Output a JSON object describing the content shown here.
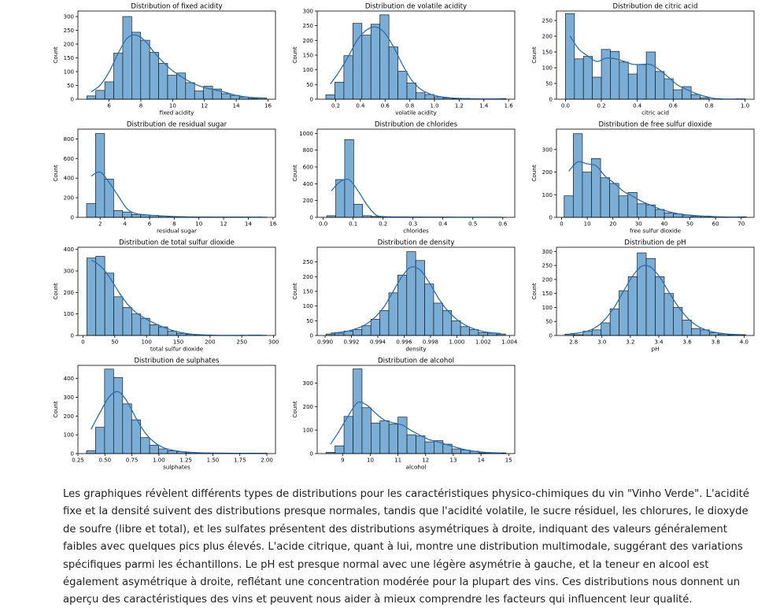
{
  "chart_data": [
    {
      "type": "bar",
      "title": "Distribution of fixed acidity",
      "xlabel": "fixed acidity",
      "ylabel": "Count",
      "x_range": [
        4.6,
        15.9
      ],
      "xlim": [
        4.04,
        16.47
      ],
      "ylim": [
        0,
        320
      ],
      "xticks": [
        6,
        8,
        10,
        12,
        14,
        16
      ],
      "yticks": [
        0,
        50,
        100,
        150,
        200,
        250,
        300
      ],
      "values": [
        12,
        32,
        63,
        167,
        300,
        243,
        214,
        170,
        130,
        87,
        95,
        60,
        30,
        47,
        37,
        20,
        14,
        8,
        3,
        5
      ]
    },
    {
      "type": "bar",
      "title": "Distribution de volatile acidity",
      "xlabel": "volatile acidity",
      "ylabel": "Count",
      "x_range": [
        0.12,
        1.58
      ],
      "xlim": [
        0.05,
        1.65
      ],
      "ylim": [
        0,
        300
      ],
      "xticks": [
        0.2,
        0.4,
        0.6,
        0.8,
        1.0,
        1.2,
        1.4,
        1.6
      ],
      "yticks": [
        0,
        50,
        100,
        150,
        200,
        250,
        300
      ],
      "values": [
        15,
        58,
        148,
        258,
        218,
        255,
        287,
        178,
        95,
        55,
        22,
        16,
        8,
        4,
        2,
        3,
        1,
        0,
        1,
        2
      ]
    },
    {
      "type": "bar",
      "title": "Distribution de citric acid",
      "xlabel": "citric acid",
      "ylabel": "Count",
      "x_range": [
        0,
        1
      ],
      "xlim": [
        -0.05,
        1.05
      ],
      "ylim": [
        0,
        280
      ],
      "xticks": [
        0.0,
        0.2,
        0.4,
        0.6,
        0.8,
        1.0
      ],
      "yticks": [
        0,
        50,
        100,
        150,
        200,
        250
      ],
      "values": [
        272,
        128,
        136,
        70,
        158,
        152,
        118,
        80,
        110,
        150,
        88,
        65,
        30,
        40,
        15,
        5,
        0,
        0,
        0,
        1
      ]
    },
    {
      "type": "bar",
      "title": "Distribution de residual sugar",
      "xlabel": "residual sugar",
      "ylabel": "Count",
      "x_range": [
        0.9,
        15.5
      ],
      "xlim": [
        0.2,
        16.2
      ],
      "ylim": [
        0,
        900
      ],
      "xticks": [
        2,
        4,
        6,
        8,
        10,
        12,
        14,
        16
      ],
      "yticks": [
        0,
        200,
        400,
        600,
        800
      ],
      "values": [
        140,
        855,
        390,
        70,
        55,
        30,
        25,
        20,
        12,
        8,
        6,
        3,
        3,
        2,
        2,
        2,
        3,
        2,
        1,
        2
      ]
    },
    {
      "type": "bar",
      "title": "Distribution de chlorides",
      "xlabel": "chlorides",
      "ylabel": "Count",
      "x_range": [
        0.012,
        0.611
      ],
      "xlim": [
        -0.02,
        0.64
      ],
      "ylim": [
        0,
        1050
      ],
      "xticks": [
        0.0,
        0.1,
        0.2,
        0.3,
        0.4,
        0.5,
        0.6
      ],
      "yticks": [
        0,
        200,
        400,
        600,
        800,
        1000
      ],
      "values": [
        20,
        450,
        925,
        155,
        20,
        10,
        6,
        4,
        4,
        3,
        3,
        2,
        2,
        2,
        1,
        1,
        1,
        1,
        1,
        1
      ]
    },
    {
      "type": "bar",
      "title": "Distribution de free sulfur dioxide",
      "xlabel": "free sulfur dioxide",
      "ylabel": "Count",
      "x_range": [
        1,
        72
      ],
      "xlim": [
        -2,
        75
      ],
      "ylim": [
        0,
        390
      ],
      "xticks": [
        0,
        10,
        20,
        30,
        40,
        50,
        60,
        70
      ],
      "yticks": [
        0,
        100,
        200,
        300
      ],
      "values": [
        95,
        370,
        200,
        260,
        175,
        150,
        95,
        110,
        60,
        55,
        35,
        20,
        15,
        10,
        5,
        6,
        2,
        1,
        0,
        2
      ]
    },
    {
      "type": "bar",
      "title": "Distribution de total sulfur dioxide",
      "xlabel": "total sulfur dioxide",
      "ylabel": "Count",
      "x_range": [
        6,
        289
      ],
      "xlim": [
        -8,
        303
      ],
      "ylim": [
        0,
        410
      ],
      "xticks": [
        0,
        50,
        100,
        150,
        200,
        250,
        300
      ],
      "yticks": [
        0,
        100,
        200,
        300,
        400
      ],
      "values": [
        360,
        368,
        290,
        180,
        130,
        100,
        80,
        50,
        40,
        20,
        10,
        5,
        3,
        1,
        0,
        0,
        0,
        0,
        1,
        1
      ]
    },
    {
      "type": "bar",
      "title": "Distribution de density",
      "xlabel": "density",
      "ylabel": "Count",
      "x_range": [
        0.99007,
        1.00369
      ],
      "xlim": [
        0.9894,
        1.0044
      ],
      "ylim": [
        0,
        300
      ],
      "xticks": [
        0.99,
        0.992,
        0.994,
        0.996,
        0.998,
        1.0,
        1.002,
        1.004
      ],
      "yticks": [
        0,
        50,
        100,
        150,
        200,
        250
      ],
      "values": [
        5,
        8,
        15,
        20,
        33,
        55,
        85,
        145,
        205,
        285,
        255,
        175,
        110,
        85,
        50,
        30,
        20,
        10,
        8,
        5
      ]
    },
    {
      "type": "bar",
      "title": "Distribution de pH",
      "xlabel": "pH",
      "ylabel": "Count",
      "x_range": [
        2.74,
        4.01
      ],
      "xlim": [
        2.68,
        4.07
      ],
      "ylim": [
        0,
        315
      ],
      "xticks": [
        2.8,
        3.0,
        3.2,
        3.4,
        3.6,
        3.8,
        4.0
      ],
      "yticks": [
        0,
        50,
        100,
        150,
        200,
        250,
        300
      ],
      "values": [
        5,
        3,
        15,
        20,
        45,
        95,
        160,
        210,
        295,
        275,
        210,
        150,
        100,
        55,
        25,
        20,
        10,
        5,
        2,
        3
      ]
    },
    {
      "type": "bar",
      "title": "Distribution de sulphates",
      "xlabel": "sulphates",
      "ylabel": "Count",
      "x_range": [
        0.33,
        2.0
      ],
      "xlim": [
        0.25,
        2.08
      ],
      "ylim": [
        0,
        470
      ],
      "xticks": [
        0.25,
        0.5,
        0.75,
        1.0,
        1.25,
        1.5,
        1.75,
        2.0
      ],
      "yticks": [
        0,
        100,
        200,
        300,
        400
      ],
      "values": [
        15,
        140,
        450,
        405,
        265,
        180,
        85,
        45,
        25,
        15,
        10,
        5,
        4,
        3,
        2,
        2,
        2,
        1,
        1,
        2
      ]
    },
    {
      "type": "bar",
      "title": "Distribution de alcohol",
      "xlabel": "alcohol",
      "ylabel": "Count",
      "x_range": [
        8.4,
        14.9
      ],
      "xlim": [
        8.08,
        15.22
      ],
      "ylim": [
        0,
        375
      ],
      "xticks": [
        9,
        10,
        11,
        12,
        13,
        14,
        15
      ],
      "yticks": [
        0,
        100,
        200,
        300
      ],
      "values": [
        5,
        33,
        158,
        360,
        195,
        130,
        140,
        125,
        155,
        80,
        75,
        50,
        55,
        40,
        20,
        15,
        10,
        3,
        2,
        3
      ]
    }
  ],
  "description": "Les graphiques révèlent différents types de distributions pour les caractéristiques physico-chimiques du vin \"Vinho Verde\". L'acidité fixe et la densité suivent des distributions presque normales, tandis que l'acidité volatile, le sucre résiduel, les chlorures, le dioxyde de soufre (libre et total), et les sulfates présentent des distributions asymétriques à droite, indiquant des valeurs généralement faibles avec quelques pics plus élevés. L'acide citrique, quant à lui, montre une distribution multimodale, suggérant des variations spécifiques parmi les échantillons. Le pH est presque normal avec une légère asymétrie à gauche, et la teneur en alcool est également asymétrique à droite, reflétant une concentration modérée pour la plupart des vins. Ces distributions nous donnent un aperçu des caractéristiques des vins et peuvent nous aider à mieux comprendre les facteurs qui influencent leur qualité.",
  "colors": {
    "bar_fill": "#7aaed6",
    "bar_stroke": "#1a1a1a",
    "kde_line": "#2b6fae",
    "axis": "#000000"
  }
}
